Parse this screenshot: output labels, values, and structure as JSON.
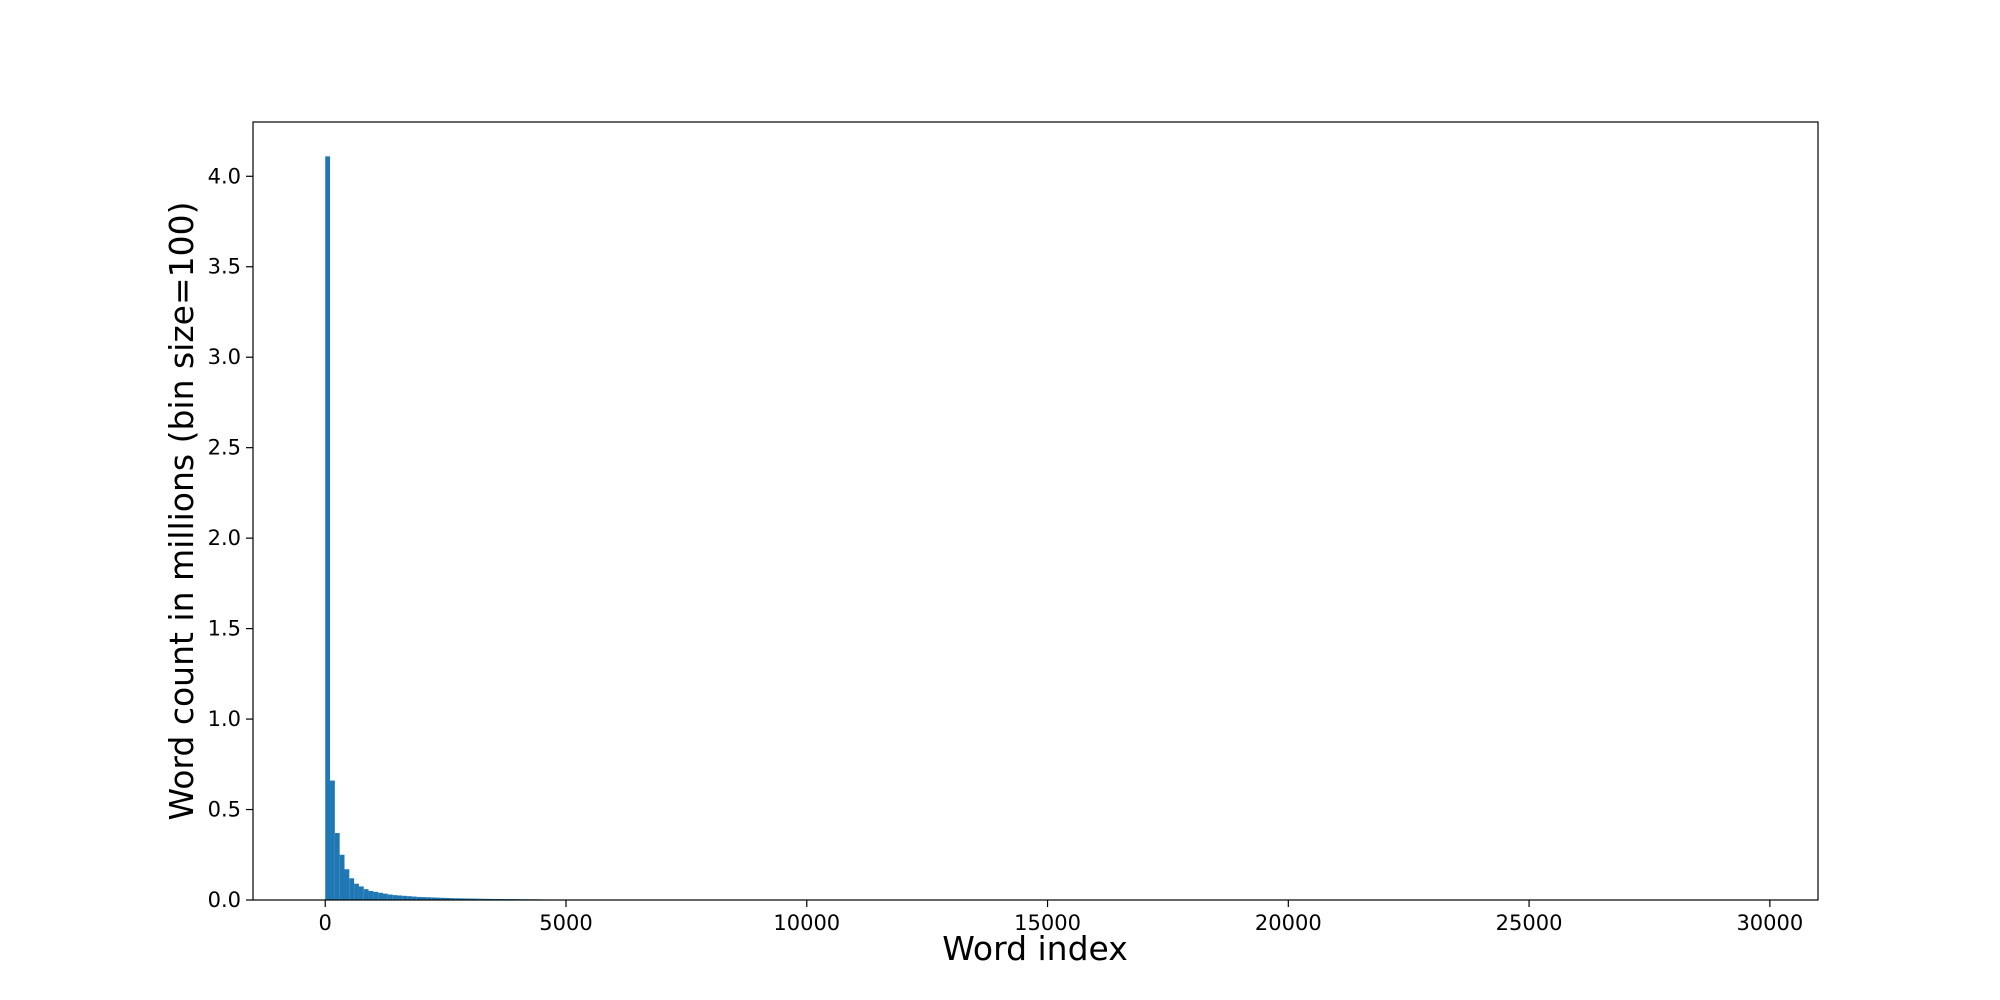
{
  "chart_data": {
    "type": "bar",
    "title": "",
    "xlabel": "Word index",
    "ylabel": "Word count in millions (bin size=100)",
    "bin_size": 100,
    "xlim": [
      -1500,
      31000
    ],
    "ylim": [
      0,
      4.3
    ],
    "xticks": [
      0,
      5000,
      10000,
      15000,
      20000,
      25000,
      30000
    ],
    "xtick_labels": [
      "0",
      "5000",
      "10000",
      "15000",
      "20000",
      "25000",
      "30000"
    ],
    "yticks": [
      0,
      0.5,
      1.0,
      1.5,
      2.0,
      2.5,
      3.0,
      3.5,
      4.0
    ],
    "ytick_labels": [
      "0.0",
      "0.5",
      "1.0",
      "1.5",
      "2.0",
      "2.5",
      "3.0",
      "3.5",
      "4.0"
    ],
    "grid": false,
    "legend": "none",
    "bar_color": "#1f77b4",
    "bins_start": [
      0,
      100,
      200,
      300,
      400,
      500,
      600,
      700,
      800,
      900,
      1000,
      1100,
      1200,
      1300,
      1400,
      1500,
      1600,
      1700,
      1800,
      1900,
      2000,
      2100,
      2200,
      2300,
      2400,
      2500,
      2600,
      2700,
      2800,
      2900,
      3000,
      3100,
      3200,
      3300,
      3400,
      3500,
      3600,
      3700,
      3800,
      3900,
      4000,
      4100,
      4200,
      4300,
      4400,
      4500
    ],
    "values": [
      4.11,
      0.66,
      0.37,
      0.25,
      0.17,
      0.12,
      0.09,
      0.075,
      0.06,
      0.05,
      0.045,
      0.04,
      0.035,
      0.03,
      0.027,
      0.025,
      0.023,
      0.021,
      0.019,
      0.017,
      0.016,
      0.015,
      0.014,
      0.013,
      0.012,
      0.011,
      0.01,
      0.0095,
      0.009,
      0.0085,
      0.008,
      0.0075,
      0.007,
      0.0065,
      0.006,
      0.0058,
      0.0055,
      0.0052,
      0.005,
      0.0048,
      0.0045,
      0.0043,
      0.004,
      0.0038,
      0.0035,
      0.003
    ]
  }
}
